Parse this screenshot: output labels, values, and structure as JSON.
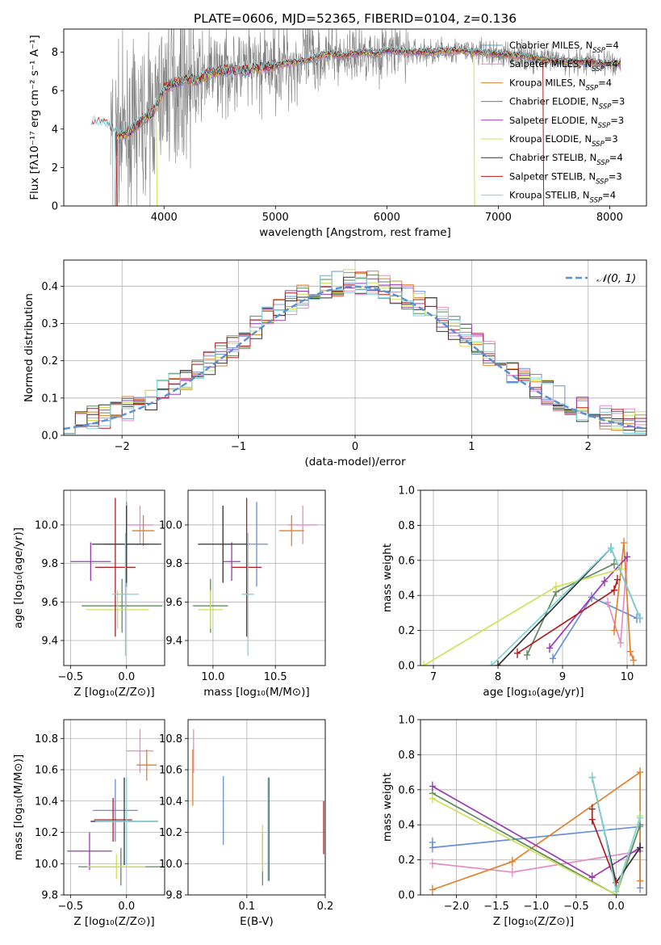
{
  "palette": {
    "chabrier_miles": "#6a8fd8",
    "salpeter_miles": "#e58dc3",
    "kroupa_miles": "#e2812d",
    "chabrier_elodie": "#5f8a5f",
    "salpeter_elodie": "#9a3bb5",
    "kroupa_elodie": "#cde25a",
    "chabrier_stelib": "#333333",
    "salpeter_stelib": "#b21d1d",
    "kroupa_stelib": "#7fd3d8",
    "data": "#7f7f7f",
    "gauss": "#5b8fd6"
  },
  "chart_data": [
    {
      "id": "spectrum",
      "type": "line",
      "title": "PLATE=0606, MJD=52365, FIBERID=0104, z=0.136",
      "xlabel": "wavelength [Angstrom, rest frame]",
      "ylabel": "Flux [fλ10⁻¹⁷ erg cm⁻² s⁻¹ A⁻¹]",
      "xlim": [
        3100,
        8330
      ],
      "ylim": [
        0,
        9.2
      ],
      "xticks": [
        4000,
        5000,
        6000,
        7000,
        8000
      ],
      "yticks": [
        0,
        2,
        4,
        6,
        8
      ],
      "grid": false,
      "legend_position": "right",
      "legend": [
        {
          "label": "Chabrier MILES, N",
          "sub": "SSP",
          "suffix": "=4",
          "color": "chabrier_miles"
        },
        {
          "label": "Salpeter MILES, N",
          "sub": "SSP",
          "suffix": "=4",
          "color": "salpeter_miles"
        },
        {
          "label": "Kroupa MILES, N",
          "sub": "SSP",
          "suffix": "=4",
          "color": "kroupa_miles"
        },
        {
          "label": "Chabrier ELODIE, N",
          "sub": "SSP",
          "suffix": "=3",
          "color": "chabrier_elodie"
        },
        {
          "label": "Salpeter ELODIE, N",
          "sub": "SSP",
          "suffix": "=3",
          "color": "salpeter_elodie"
        },
        {
          "label": "Kroupa ELODIE, N",
          "sub": "SSP",
          "suffix": "=3",
          "color": "kroupa_elodie"
        },
        {
          "label": "Chabrier STELIB, N",
          "sub": "SSP",
          "suffix": "=4",
          "color": "chabrier_stelib"
        },
        {
          "label": "Salpeter STELIB, N",
          "sub": "SSP",
          "suffix": "=3",
          "color": "salpeter_stelib"
        },
        {
          "label": "Kroupa STELIB, N",
          "sub": "SSP",
          "suffix": "=4",
          "color": "kroupa_stelib"
        }
      ],
      "continuum": [
        [
          3350,
          4.3
        ],
        [
          3500,
          4.1
        ],
        [
          3600,
          3.6
        ],
        [
          3700,
          3.9
        ],
        [
          3800,
          4.4
        ],
        [
          3900,
          4.8
        ],
        [
          4000,
          6.1
        ],
        [
          4100,
          6.4
        ],
        [
          4200,
          6.6
        ],
        [
          4300,
          6.5
        ],
        [
          4400,
          6.9
        ],
        [
          4500,
          7.0
        ],
        [
          4600,
          7.1
        ],
        [
          4700,
          7.0
        ],
        [
          4800,
          7.1
        ],
        [
          4900,
          7.2
        ],
        [
          5000,
          7.3
        ],
        [
          5100,
          7.4
        ],
        [
          5200,
          7.5
        ],
        [
          5300,
          7.6
        ],
        [
          5400,
          7.8
        ],
        [
          5500,
          7.9
        ],
        [
          5600,
          7.8
        ],
        [
          5700,
          7.9
        ],
        [
          5800,
          8.0
        ],
        [
          5900,
          7.9
        ],
        [
          6000,
          8.1
        ],
        [
          6200,
          8.0
        ],
        [
          6400,
          8.0
        ],
        [
          6600,
          8.1
        ],
        [
          6800,
          8.0
        ],
        [
          7000,
          7.9
        ],
        [
          7200,
          7.8
        ],
        [
          7400,
          7.6
        ],
        [
          7600,
          7.5
        ],
        [
          7800,
          7.5
        ],
        [
          8000,
          7.4
        ],
        [
          8100,
          7.4
        ]
      ]
    },
    {
      "id": "residuals",
      "type": "line",
      "xlabel": "(data-model)/error",
      "ylabel": "Normed distribution",
      "xlim": [
        -2.5,
        2.5
      ],
      "ylim": [
        0,
        0.47
      ],
      "xticks": [
        -2,
        -1,
        0,
        1,
        2
      ],
      "yticks": [
        0.0,
        0.1,
        0.2,
        0.3,
        0.4
      ],
      "grid": true,
      "legend_position": "top-right",
      "legend": [
        {
          "label": "𝒩(0, 1)",
          "color": "gauss",
          "style": "dashed"
        }
      ],
      "bin_width": 0.1
    },
    {
      "id": "age_vs_Z",
      "type": "scatter",
      "xlabel": "Z [log₁₀(Z/Z⊙)]",
      "ylabel": "age  [log₁₀(age/yr)]",
      "xlim": [
        -0.56,
        0.34
      ],
      "ylim": [
        9.27,
        10.18
      ],
      "xticks": [
        -0.5,
        0.0
      ],
      "yticks": [
        9.4,
        9.6,
        9.8,
        10.0
      ],
      "grid": true,
      "points": [
        {
          "color": "chabrier_miles",
          "x": 0.0,
          "xerr": 0.2,
          "y": 9.9,
          "yerr": 0.22
        },
        {
          "color": "salpeter_miles",
          "x": 0.12,
          "xerr": 0.12,
          "y": 10.0,
          "yerr": 0.1
        },
        {
          "color": "kroupa_miles",
          "x": 0.15,
          "xerr": 0.1,
          "y": 9.97,
          "yerr": 0.08
        },
        {
          "color": "chabrier_elodie",
          "x": -0.04,
          "xerr": 0.36,
          "y": 9.58,
          "yerr": 0.14
        },
        {
          "color": "salpeter_elodie",
          "x": -0.32,
          "xerr": 0.18,
          "y": 9.81,
          "yerr": 0.1
        },
        {
          "color": "kroupa_elodie",
          "x": -0.08,
          "xerr": 0.28,
          "y": 9.56,
          "yerr": 0.1
        },
        {
          "color": "chabrier_stelib",
          "x": 0.0,
          "xerr": 0.31,
          "y": 9.9,
          "yerr": 0.2
        },
        {
          "color": "salpeter_stelib",
          "x": -0.1,
          "xerr": 0.18,
          "y": 9.78,
          "yerr": 0.36
        },
        {
          "color": "kroupa_stelib",
          "x": -0.01,
          "xerr": 0.12,
          "y": 9.64,
          "yerr": 0.32
        }
      ]
    },
    {
      "id": "age_vs_mass",
      "type": "scatter",
      "xlabel": "mass [log₁₀(M/M⊙)]",
      "xlim": [
        9.8,
        10.9
      ],
      "ylim": [
        9.27,
        10.18
      ],
      "xticks": [
        10.0,
        10.5
      ],
      "yticks": [
        9.4,
        9.6,
        9.8,
        10.0
      ],
      "grid": true,
      "points": [
        {
          "color": "chabrier_miles",
          "x": 10.35,
          "xerr": 0.09,
          "y": 9.9,
          "yerr": 0.22
        },
        {
          "color": "salpeter_miles",
          "x": 10.72,
          "xerr": 0.12,
          "y": 10.0,
          "yerr": 0.1
        },
        {
          "color": "kroupa_miles",
          "x": 10.63,
          "xerr": 0.1,
          "y": 9.97,
          "yerr": 0.08
        },
        {
          "color": "chabrier_elodie",
          "x": 9.98,
          "xerr": 0.14,
          "y": 9.58,
          "yerr": 0.14
        },
        {
          "color": "salpeter_elodie",
          "x": 10.15,
          "xerr": 0.07,
          "y": 9.81,
          "yerr": 0.1
        },
        {
          "color": "kroupa_elodie",
          "x": 9.98,
          "xerr": 0.1,
          "y": 9.56,
          "yerr": 0.1
        },
        {
          "color": "chabrier_stelib",
          "x": 10.08,
          "xerr": 0.2,
          "y": 9.9,
          "yerr": 0.2
        },
        {
          "color": "salpeter_stelib",
          "x": 10.27,
          "xerr": 0.12,
          "y": 9.78,
          "yerr": 0.36
        },
        {
          "color": "kroupa_stelib",
          "x": 10.28,
          "xerr": 0.05,
          "y": 9.64,
          "yerr": 0.32
        }
      ]
    },
    {
      "id": "weight_vs_age",
      "type": "line",
      "xlabel": "age  [log₁₀(age/yr)]",
      "ylabel": "mass weight",
      "xlim": [
        6.8,
        10.3
      ],
      "ylim": [
        0,
        1.0
      ],
      "xticks": [
        7,
        8,
        9,
        10
      ],
      "yticks": [
        0.0,
        0.2,
        0.4,
        0.6,
        0.8,
        1.0
      ],
      "grid": true,
      "series": [
        {
          "color": "chabrier_miles",
          "points": [
            [
              8.85,
              0.04
            ],
            [
              9.45,
              0.39
            ],
            [
              10.15,
              0.27
            ]
          ]
        },
        {
          "color": "salpeter_miles",
          "points": [
            [
              9.7,
              0.36
            ],
            [
              9.9,
              0.13
            ],
            [
              10.0,
              0.62
            ]
          ]
        },
        {
          "color": "kroupa_miles",
          "points": [
            [
              9.8,
              0.2
            ],
            [
              9.95,
              0.7
            ],
            [
              10.05,
              0.08
            ],
            [
              10.1,
              0.03
            ]
          ]
        },
        {
          "color": "chabrier_elodie",
          "points": [
            [
              8.45,
              0.06
            ],
            [
              8.9,
              0.42
            ],
            [
              9.8,
              0.58
            ]
          ]
        },
        {
          "color": "salpeter_elodie",
          "points": [
            [
              8.8,
              0.1
            ],
            [
              9.65,
              0.48
            ],
            [
              10.0,
              0.62
            ]
          ]
        },
        {
          "color": "kroupa_elodie",
          "points": [
            [
              6.85,
              0.0
            ],
            [
              8.9,
              0.45
            ],
            [
              9.9,
              0.55
            ]
          ]
        },
        {
          "color": "chabrier_stelib",
          "points": [
            [
              8.0,
              0.0
            ],
            [
              9.75,
              0.67
            ],
            [
              10.2,
              0.27
            ]
          ]
        },
        {
          "color": "salpeter_stelib",
          "points": [
            [
              8.3,
              0.07
            ],
            [
              9.8,
              0.43
            ],
            [
              9.85,
              0.49
            ]
          ]
        },
        {
          "color": "kroupa_stelib",
          "points": [
            [
              7.9,
              0.0
            ],
            [
              9.75,
              0.67
            ],
            [
              10.2,
              0.27
            ]
          ]
        }
      ]
    },
    {
      "id": "mass_vs_Z",
      "type": "scatter",
      "xlabel": "Z [log₁₀(Z/Z⊙)]",
      "ylabel": "mass [log₁₀(M/M⊙)]",
      "xlim": [
        -0.56,
        0.34
      ],
      "ylim": [
        9.8,
        10.92
      ],
      "xticks": [
        -0.5,
        0.0
      ],
      "yticks": [
        9.8,
        10.0,
        10.2,
        10.4,
        10.6,
        10.8
      ],
      "grid": true,
      "points": [
        {
          "color": "chabrier_miles",
          "x": -0.1,
          "xerr": 0.2,
          "y": 10.34,
          "yerr": 0.2
        },
        {
          "color": "salpeter_miles",
          "x": 0.12,
          "xerr": 0.12,
          "y": 10.72,
          "yerr": 0.14
        },
        {
          "color": "kroupa_miles",
          "x": 0.18,
          "xerr": 0.09,
          "y": 10.63,
          "yerr": 0.1
        },
        {
          "color": "chabrier_elodie",
          "x": -0.05,
          "xerr": 0.38,
          "y": 9.98,
          "yerr": 0.12
        },
        {
          "color": "salpeter_elodie",
          "x": -0.33,
          "xerr": 0.2,
          "y": 10.08,
          "yerr": 0.12
        },
        {
          "color": "kroupa_elodie",
          "x": -0.09,
          "xerr": 0.26,
          "y": 9.98,
          "yerr": 0.08
        },
        {
          "color": "chabrier_stelib",
          "x": -0.02,
          "xerr": 0.3,
          "y": 10.27,
          "yerr": 0.28
        },
        {
          "color": "salpeter_stelib",
          "x": -0.12,
          "xerr": 0.17,
          "y": 10.28,
          "yerr": 0.14
        },
        {
          "color": "kroupa_stelib",
          "x": 0.0,
          "xerr": 0.28,
          "y": 10.27,
          "yerr": 0.28
        }
      ]
    },
    {
      "id": "mass_vs_ebv",
      "type": "scatter",
      "xlabel": "E(B-V)",
      "xlim": [
        0.025,
        0.2
      ],
      "ylim": [
        9.8,
        10.92
      ],
      "xticks": [
        0.1,
        0.2
      ],
      "yticks": [
        9.8,
        10.0,
        10.2,
        10.4,
        10.6,
        10.8
      ],
      "grid": true,
      "points": [
        {
          "color": "chabrier_miles",
          "x": 0.07,
          "y": 10.34,
          "yerr": 0.22
        },
        {
          "color": "salpeter_miles",
          "x": 0.032,
          "y": 10.72,
          "yerr": 0.14
        },
        {
          "color": "kroupa_miles",
          "x": 0.031,
          "y": 10.55,
          "yerr": 0.18
        },
        {
          "color": "chabrier_elodie",
          "x": 0.12,
          "y": 9.98,
          "yerr": 0.12
        },
        {
          "color": "salpeter_elodie",
          "x": 0.12,
          "y": 10.1,
          "yerr": 0.1
        },
        {
          "color": "kroupa_elodie",
          "x": 0.12,
          "y": 10.1,
          "yerr": 0.15
        },
        {
          "color": "chabrier_stelib",
          "x": 0.128,
          "y": 10.22,
          "yerr": 0.33
        },
        {
          "color": "salpeter_stelib",
          "x": 0.198,
          "y": 10.23,
          "yerr": 0.17
        },
        {
          "color": "kroupa_stelib",
          "x": 0.127,
          "y": 10.22,
          "yerr": 0.33
        }
      ]
    },
    {
      "id": "weight_vs_Z",
      "type": "line",
      "xlabel": "Z [log₁₀(Z/Z⊙)]",
      "ylabel": "mass weight",
      "xlim": [
        -2.45,
        0.38
      ],
      "ylim": [
        0,
        1.0
      ],
      "xticks": [
        -2.0,
        -1.5,
        -1.0,
        -0.5,
        0.0
      ],
      "yticks": [
        0.0,
        0.2,
        0.4,
        0.6,
        0.8,
        1.0
      ],
      "grid": true,
      "series": [
        {
          "color": "chabrier_miles",
          "points": [
            [
              -2.3,
              0.3
            ],
            [
              -2.3,
              0.27
            ],
            [
              0.3,
              0.39
            ],
            [
              0.3,
              0.04
            ]
          ]
        },
        {
          "color": "salpeter_miles",
          "points": [
            [
              -2.3,
              0.18
            ],
            [
              -1.3,
              0.13
            ],
            [
              0.3,
              0.25
            ]
          ]
        },
        {
          "color": "kroupa_miles",
          "points": [
            [
              -2.3,
              0.03
            ],
            [
              -1.3,
              0.19
            ],
            [
              0.3,
              0.7
            ],
            [
              0.3,
              0.08
            ]
          ]
        },
        {
          "color": "chabrier_elodie",
          "points": [
            [
              -2.3,
              0.58
            ],
            [
              0.0,
              0.0
            ],
            [
              0.3,
              0.4
            ]
          ]
        },
        {
          "color": "salpeter_elodie",
          "points": [
            [
              -2.3,
              0.62
            ],
            [
              -0.3,
              0.1
            ],
            [
              0.3,
              0.27
            ]
          ]
        },
        {
          "color": "kroupa_elodie",
          "points": [
            [
              -2.3,
              0.55
            ],
            [
              0.0,
              0.0
            ],
            [
              0.3,
              0.45
            ]
          ]
        },
        {
          "color": "chabrier_stelib",
          "points": [
            [
              -0.3,
              0.67
            ],
            [
              0.0,
              0.07
            ],
            [
              0.3,
              0.27
            ]
          ]
        },
        {
          "color": "salpeter_stelib",
          "points": [
            [
              -0.3,
              0.49
            ],
            [
              -0.3,
              0.43
            ],
            [
              0.0,
              0.07
            ]
          ]
        },
        {
          "color": "kroupa_stelib",
          "points": [
            [
              -0.3,
              0.67
            ],
            [
              -0.15,
              0.37
            ],
            [
              0.0,
              0.02
            ],
            [
              0.3,
              0.44
            ]
          ]
        }
      ]
    }
  ]
}
